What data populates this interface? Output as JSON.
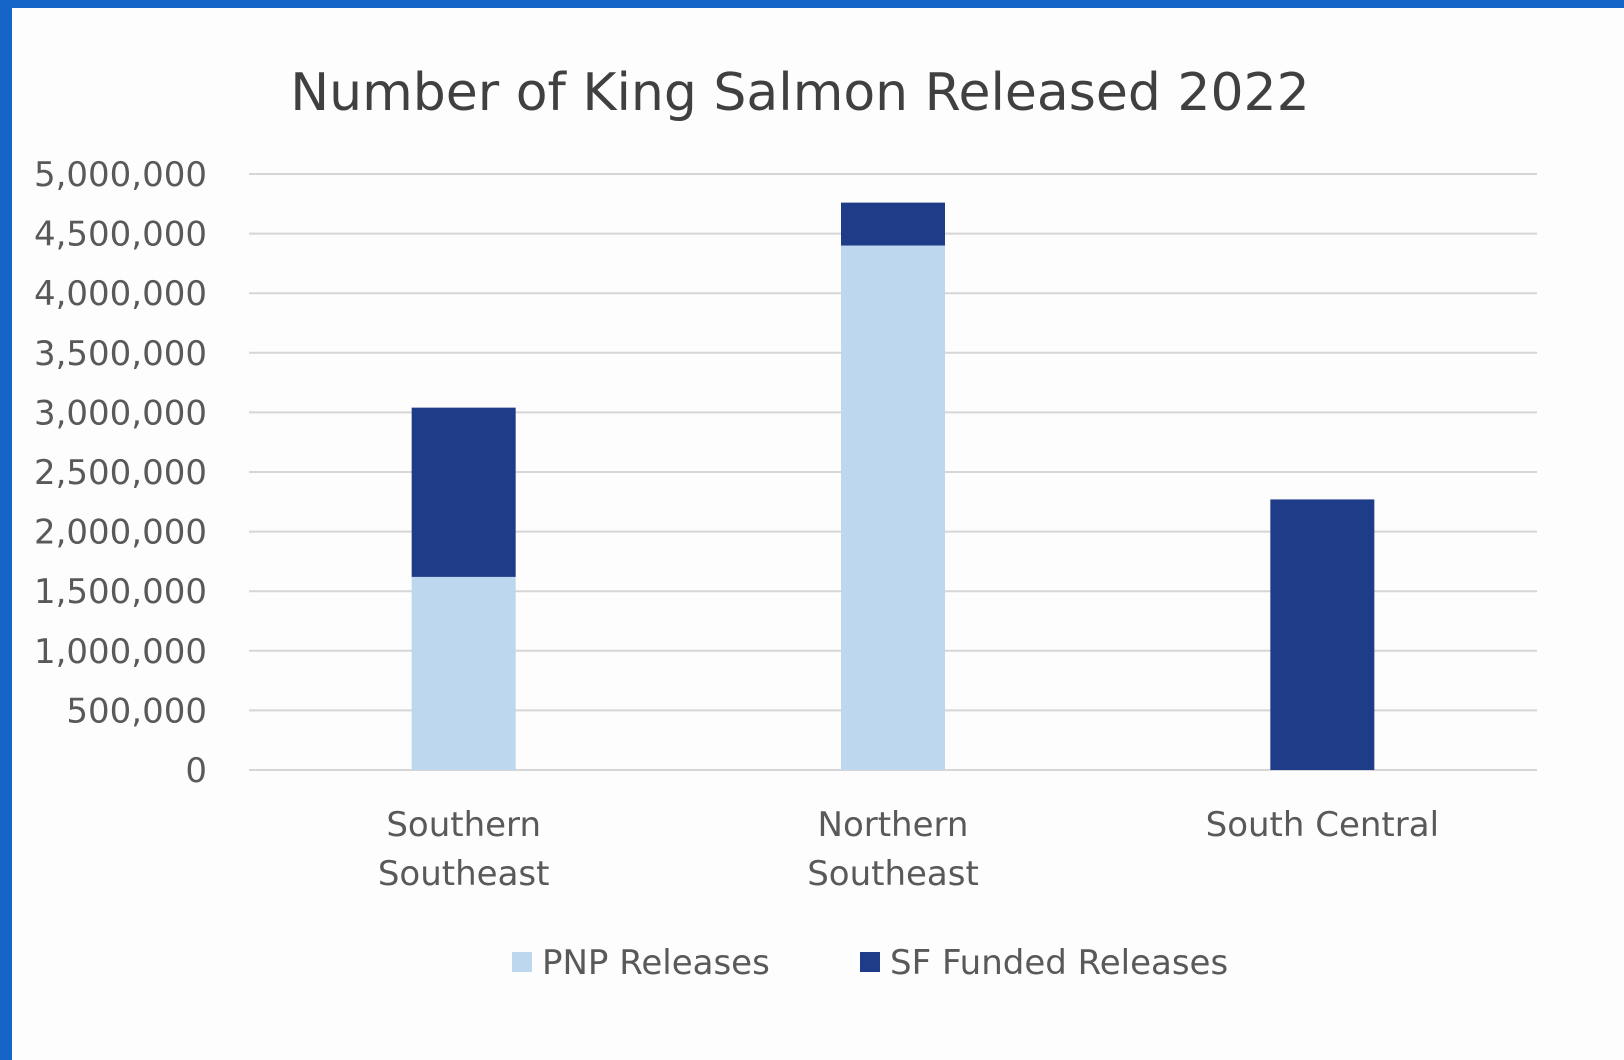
{
  "chart_data": {
    "type": "bar",
    "stacked": true,
    "title": "Number of King Salmon Released 2022",
    "categories": [
      [
        "Southern",
        "Southeast"
      ],
      [
        "Northern",
        "Southeast"
      ],
      [
        "South Central"
      ]
    ],
    "series": [
      {
        "name": "PNP Releases",
        "color": "#bdd7ee",
        "values": [
          1620000,
          4400000,
          0
        ]
      },
      {
        "name": "SF Funded Releases",
        "color": "#1f3c88",
        "values": [
          1420000,
          360000,
          2270000
        ]
      }
    ],
    "ylim": [
      0,
      5000000
    ],
    "yticks": [
      "0",
      "500,000",
      "1,000,000",
      "1,500,000",
      "2,000,000",
      "2,500,000",
      "3,000,000",
      "3,500,000",
      "4,000,000",
      "4,500,000",
      "5,000,000"
    ],
    "ytick_values": [
      0,
      500000,
      1000000,
      1500000,
      2000000,
      2500000,
      3000000,
      3500000,
      4000000,
      4500000,
      5000000
    ],
    "grid": true,
    "legend_position": "bottom"
  }
}
